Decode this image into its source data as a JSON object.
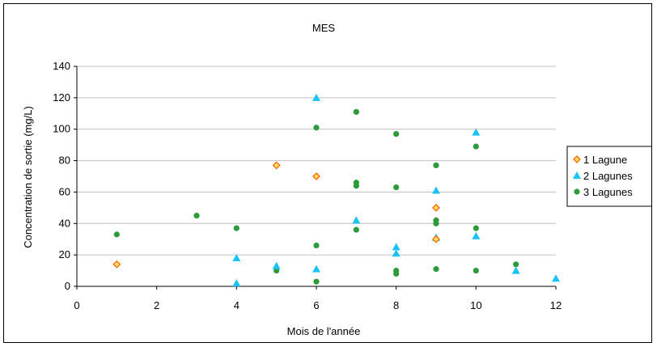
{
  "chart_data": {
    "type": "scatter",
    "title": "MES",
    "xlabel": "Mois de l'année",
    "ylabel": "Concentration de sortie (mg/L)",
    "xlim": [
      0,
      12
    ],
    "ylim": [
      0,
      140
    ],
    "xticks": [
      0,
      2,
      4,
      6,
      8,
      10,
      12
    ],
    "yticks": [
      0,
      20,
      40,
      60,
      80,
      100,
      120,
      140
    ],
    "grid": "horizontal",
    "legend_position": "right",
    "series": [
      {
        "name": "1 Lagune",
        "marker": "diamond",
        "color": "#ff6600",
        "fill": "#ffe066",
        "points": [
          [
            1,
            14
          ],
          [
            5,
            77
          ],
          [
            6,
            70
          ],
          [
            9,
            50
          ],
          [
            9,
            30
          ]
        ]
      },
      {
        "name": "2 Lagunes",
        "marker": "triangle",
        "color": "#19c3f5",
        "points": [
          [
            4,
            18
          ],
          [
            4,
            2
          ],
          [
            5,
            13
          ],
          [
            6,
            120
          ],
          [
            6,
            11
          ],
          [
            7,
            42
          ],
          [
            8,
            25
          ],
          [
            8,
            21
          ],
          [
            9,
            61
          ],
          [
            9,
            31
          ],
          [
            10,
            98
          ],
          [
            10,
            32
          ],
          [
            11,
            10
          ],
          [
            12,
            5
          ]
        ]
      },
      {
        "name": "3 Lagunes",
        "marker": "circle",
        "color": "#2e9b3a",
        "points": [
          [
            1,
            33
          ],
          [
            3,
            45
          ],
          [
            4,
            37
          ],
          [
            5,
            10
          ],
          [
            6,
            101
          ],
          [
            6,
            26
          ],
          [
            6,
            3
          ],
          [
            7,
            111
          ],
          [
            7,
            66
          ],
          [
            7,
            64
          ],
          [
            7,
            36
          ],
          [
            8,
            97
          ],
          [
            8,
            63
          ],
          [
            8,
            10
          ],
          [
            8,
            8
          ],
          [
            9,
            77
          ],
          [
            9,
            42
          ],
          [
            9,
            40
          ],
          [
            9,
            11
          ],
          [
            10,
            89
          ],
          [
            10,
            37
          ],
          [
            10,
            10
          ],
          [
            11,
            14
          ]
        ]
      }
    ]
  }
}
